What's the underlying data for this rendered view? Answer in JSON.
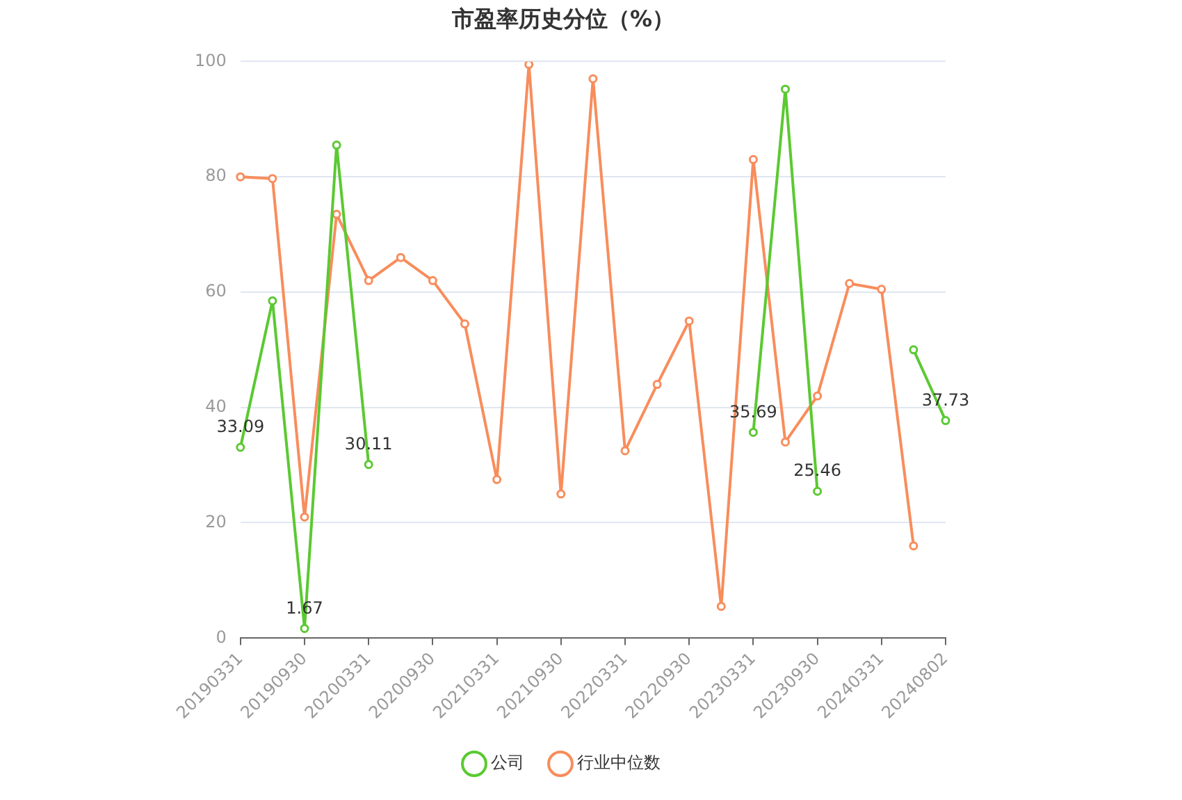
{
  "chart_data": {
    "type": "line",
    "title": "市盈率历史分位（%）",
    "categories": [
      "20190331",
      null,
      "20190930",
      null,
      "20200331",
      null,
      "20200930",
      null,
      "20210331",
      null,
      "20210930",
      null,
      "20220331",
      null,
      "20220930",
      null,
      "20230331",
      null,
      "20230930",
      null,
      "20240331",
      null,
      "20240802"
    ],
    "series": [
      {
        "name": "公司",
        "color": "#5bc932",
        "values": [
          33.09,
          58.5,
          1.67,
          85.5,
          30.11,
          null,
          null,
          null,
          null,
          null,
          null,
          null,
          null,
          null,
          null,
          null,
          35.69,
          95.2,
          25.46,
          null,
          null,
          50,
          37.73
        ],
        "value_labels": [
          "33.09",
          null,
          "1.67",
          null,
          "30.11",
          null,
          null,
          null,
          null,
          null,
          null,
          null,
          null,
          null,
          null,
          null,
          "35.69",
          null,
          "25.46",
          null,
          null,
          null,
          "37.73"
        ]
      },
      {
        "name": "行业中位数",
        "color": "#f88d5c",
        "values": [
          80,
          79.7,
          21,
          73.5,
          62,
          66,
          62,
          54.5,
          27.5,
          99.5,
          25,
          97,
          32.5,
          44,
          55,
          5.5,
          83,
          34,
          42,
          61.5,
          60.5,
          16,
          null
        ]
      }
    ],
    "ylim": [
      0,
      100
    ],
    "yticks": [
      0,
      20,
      40,
      60,
      80,
      100
    ],
    "grid": "y",
    "legend": "bottom",
    "marker": "circle",
    "line_style": "solid"
  }
}
